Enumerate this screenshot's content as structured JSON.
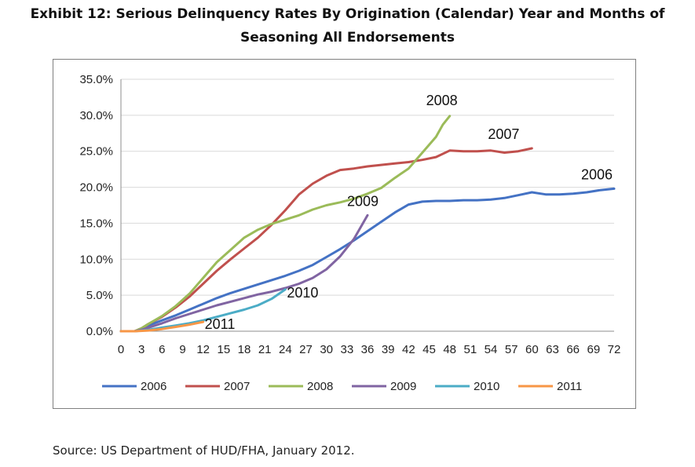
{
  "title_lines": [
    "Exhibit 12: Serious Delinquency Rates By Origination (Calendar) Year and Months of",
    "Seasoning All Endorsements"
  ],
  "source_note": "Source: US Department of HUD/FHA, January 2012.",
  "chart_data": {
    "type": "line",
    "title": "Exhibit 12: Serious Delinquency Rates By Origination (Calendar) Year and Months of Seasoning All Endorsements",
    "xlabel": "",
    "ylabel": "",
    "xlim": [
      0,
      72
    ],
    "ylim": [
      0,
      0.35
    ],
    "x_ticks": [
      0,
      3,
      6,
      9,
      12,
      15,
      18,
      21,
      24,
      27,
      30,
      33,
      36,
      39,
      42,
      45,
      48,
      51,
      54,
      57,
      60,
      63,
      66,
      69,
      72
    ],
    "y_ticks": [
      "0.0%",
      "5.0%",
      "10.0%",
      "15.0%",
      "20.0%",
      "25.0%",
      "30.0%",
      "35.0%"
    ],
    "y_tick_values": [
      0,
      0.05,
      0.1,
      0.15,
      0.2,
      0.25,
      0.3,
      0.35
    ],
    "grid": "horizontal",
    "legend_position": "bottom",
    "series": [
      {
        "name": "2006",
        "color": "#4472C4",
        "label": "2006",
        "x": [
          0,
          2,
          3,
          4,
          6,
          8,
          10,
          12,
          14,
          16,
          18,
          20,
          22,
          24,
          26,
          28,
          30,
          32,
          34,
          36,
          38,
          40,
          42,
          44,
          46,
          48,
          50,
          52,
          54,
          56,
          58,
          60,
          62,
          64,
          66,
          68,
          70,
          72
        ],
        "y": [
          0,
          0,
          0.003,
          0.008,
          0.015,
          0.022,
          0.03,
          0.038,
          0.046,
          0.053,
          0.059,
          0.065,
          0.071,
          0.077,
          0.084,
          0.092,
          0.103,
          0.114,
          0.126,
          0.139,
          0.152,
          0.165,
          0.176,
          0.18,
          0.181,
          0.181,
          0.182,
          0.182,
          0.183,
          0.185,
          0.189,
          0.193,
          0.19,
          0.19,
          0.191,
          0.193,
          0.196,
          0.198
        ]
      },
      {
        "name": "2007",
        "color": "#C0504D",
        "label": "2007",
        "x": [
          0,
          2,
          3,
          4,
          6,
          8,
          10,
          12,
          14,
          16,
          18,
          20,
          22,
          24,
          26,
          28,
          30,
          32,
          34,
          36,
          38,
          40,
          42,
          44,
          46,
          48,
          50,
          52,
          54,
          56,
          58,
          60
        ],
        "y": [
          0,
          0,
          0.004,
          0.01,
          0.02,
          0.033,
          0.048,
          0.066,
          0.084,
          0.1,
          0.115,
          0.13,
          0.148,
          0.168,
          0.19,
          0.205,
          0.216,
          0.224,
          0.226,
          0.229,
          0.231,
          0.233,
          0.235,
          0.238,
          0.242,
          0.251,
          0.25,
          0.25,
          0.251,
          0.248,
          0.25,
          0.254
        ]
      },
      {
        "name": "2008",
        "color": "#9BBB59",
        "label": "2008",
        "x": [
          0,
          2,
          3,
          4,
          6,
          8,
          10,
          12,
          14,
          16,
          18,
          20,
          22,
          24,
          26,
          28,
          30,
          32,
          34,
          36,
          38,
          40,
          42,
          44,
          46,
          47,
          48
        ],
        "y": [
          0,
          0,
          0.004,
          0.01,
          0.021,
          0.035,
          0.052,
          0.074,
          0.096,
          0.113,
          0.13,
          0.141,
          0.149,
          0.155,
          0.161,
          0.169,
          0.175,
          0.179,
          0.184,
          0.191,
          0.199,
          0.213,
          0.226,
          0.248,
          0.27,
          0.287,
          0.299
        ]
      },
      {
        "name": "2009",
        "color": "#8064A2",
        "label": "2009",
        "x": [
          0,
          2,
          3,
          4,
          6,
          8,
          10,
          12,
          14,
          16,
          18,
          20,
          22,
          24,
          26,
          28,
          30,
          32,
          34,
          36
        ],
        "y": [
          0,
          0,
          0.002,
          0.005,
          0.011,
          0.018,
          0.024,
          0.03,
          0.036,
          0.041,
          0.046,
          0.051,
          0.055,
          0.06,
          0.066,
          0.074,
          0.086,
          0.104,
          0.128,
          0.161
        ]
      },
      {
        "name": "2010",
        "color": "#4BACC6",
        "label": "2010",
        "x": [
          0,
          2,
          4,
          6,
          8,
          10,
          12,
          14,
          16,
          18,
          20,
          22,
          24
        ],
        "y": [
          0,
          0,
          0.002,
          0.005,
          0.008,
          0.011,
          0.015,
          0.02,
          0.025,
          0.03,
          0.036,
          0.045,
          0.058
        ]
      },
      {
        "name": "2011",
        "color": "#F79646",
        "label": "2011",
        "x": [
          0,
          2,
          4,
          6,
          8,
          10,
          12
        ],
        "y": [
          0,
          0,
          0.001,
          0.003,
          0.006,
          0.009,
          0.013
        ]
      }
    ]
  }
}
